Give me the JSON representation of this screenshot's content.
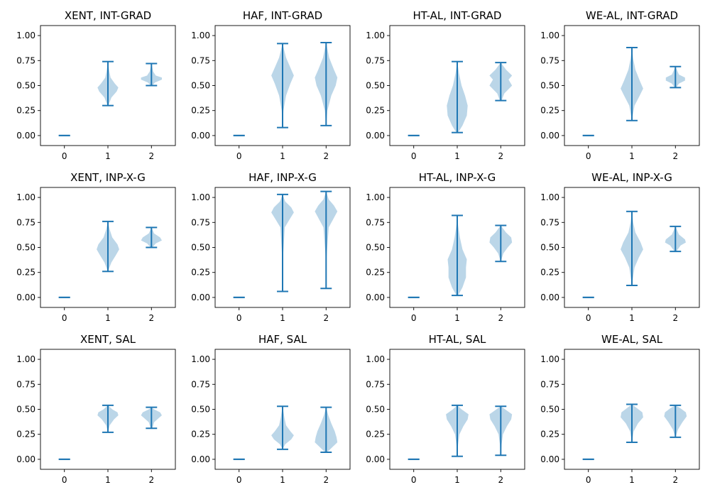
{
  "chart_data": {
    "type": "violin",
    "rows": 3,
    "cols": 4,
    "x_ticks": [
      0,
      1,
      2
    ],
    "y_ticks": [
      "0.00",
      "0.25",
      "0.50",
      "0.75",
      "1.00"
    ],
    "xlim": [
      -0.55,
      2.55
    ],
    "ylim": [
      -0.1,
      1.1
    ],
    "colors": {
      "body": "#1f77b4",
      "bar": "#1f77b4"
    },
    "panels": [
      {
        "title": "XENT, INT-GRAD",
        "series": [
          {
            "x": 0,
            "min": 0.0,
            "max": 0.0,
            "profile": []
          },
          {
            "x": 1,
            "min": 0.3,
            "max": 0.74,
            "profile": [
              [
                0.3,
                0.01
              ],
              [
                0.38,
                0.08
              ],
              [
                0.44,
                0.2
              ],
              [
                0.48,
                0.24
              ],
              [
                0.52,
                0.16
              ],
              [
                0.58,
                0.06
              ],
              [
                0.65,
                0.03
              ],
              [
                0.74,
                0.0
              ]
            ]
          },
          {
            "x": 2,
            "min": 0.5,
            "max": 0.72,
            "profile": [
              [
                0.5,
                0.02
              ],
              [
                0.53,
                0.08
              ],
              [
                0.56,
                0.24
              ],
              [
                0.58,
                0.24
              ],
              [
                0.6,
                0.1
              ],
              [
                0.64,
                0.04
              ],
              [
                0.72,
                0.0
              ]
            ]
          }
        ]
      },
      {
        "title": "HAF, INT-GRAD",
        "series": [
          {
            "x": 0,
            "min": 0.0,
            "max": 0.0,
            "profile": []
          },
          {
            "x": 1,
            "min": 0.08,
            "max": 0.92,
            "profile": [
              [
                0.08,
                0.0
              ],
              [
                0.25,
                0.02
              ],
              [
                0.4,
                0.08
              ],
              [
                0.52,
                0.18
              ],
              [
                0.6,
                0.26
              ],
              [
                0.68,
                0.18
              ],
              [
                0.78,
                0.08
              ],
              [
                0.92,
                0.0
              ]
            ]
          },
          {
            "x": 2,
            "min": 0.1,
            "max": 0.93,
            "profile": [
              [
                0.1,
                0.0
              ],
              [
                0.25,
                0.03
              ],
              [
                0.4,
                0.12
              ],
              [
                0.5,
                0.22
              ],
              [
                0.58,
                0.26
              ],
              [
                0.66,
                0.18
              ],
              [
                0.78,
                0.07
              ],
              [
                0.93,
                0.0
              ]
            ]
          }
        ]
      },
      {
        "title": "HT-AL, INT-GRAD",
        "series": [
          {
            "x": 0,
            "min": 0.0,
            "max": 0.0,
            "profile": []
          },
          {
            "x": 1,
            "min": 0.03,
            "max": 0.74,
            "profile": [
              [
                0.03,
                0.02
              ],
              [
                0.1,
                0.12
              ],
              [
                0.2,
                0.22
              ],
              [
                0.3,
                0.24
              ],
              [
                0.4,
                0.18
              ],
              [
                0.5,
                0.1
              ],
              [
                0.62,
                0.04
              ],
              [
                0.74,
                0.0
              ]
            ]
          },
          {
            "x": 2,
            "min": 0.35,
            "max": 0.73,
            "profile": [
              [
                0.35,
                0.02
              ],
              [
                0.42,
                0.08
              ],
              [
                0.5,
                0.26
              ],
              [
                0.56,
                0.18
              ],
              [
                0.6,
                0.28
              ],
              [
                0.66,
                0.12
              ],
              [
                0.73,
                0.0
              ]
            ]
          }
        ]
      },
      {
        "title": "WE-AL, INT-GRAD",
        "series": [
          {
            "x": 0,
            "min": 0.0,
            "max": 0.0,
            "profile": []
          },
          {
            "x": 1,
            "min": 0.15,
            "max": 0.88,
            "profile": [
              [
                0.15,
                0.0
              ],
              [
                0.3,
                0.06
              ],
              [
                0.4,
                0.18
              ],
              [
                0.47,
                0.26
              ],
              [
                0.55,
                0.18
              ],
              [
                0.66,
                0.08
              ],
              [
                0.77,
                0.03
              ],
              [
                0.88,
                0.0
              ]
            ]
          },
          {
            "x": 2,
            "min": 0.48,
            "max": 0.69,
            "profile": [
              [
                0.48,
                0.02
              ],
              [
                0.52,
                0.08
              ],
              [
                0.55,
                0.22
              ],
              [
                0.58,
                0.22
              ],
              [
                0.61,
                0.08
              ],
              [
                0.69,
                0.0
              ]
            ]
          }
        ]
      },
      {
        "title": "XENT, INP-X-G",
        "series": [
          {
            "x": 0,
            "min": 0.0,
            "max": 0.0,
            "profile": []
          },
          {
            "x": 1,
            "min": 0.26,
            "max": 0.76,
            "profile": [
              [
                0.26,
                0.0
              ],
              [
                0.35,
                0.08
              ],
              [
                0.42,
                0.18
              ],
              [
                0.48,
                0.26
              ],
              [
                0.53,
                0.22
              ],
              [
                0.6,
                0.1
              ],
              [
                0.68,
                0.04
              ],
              [
                0.76,
                0.0
              ]
            ]
          },
          {
            "x": 2,
            "min": 0.5,
            "max": 0.7,
            "profile": [
              [
                0.5,
                0.02
              ],
              [
                0.54,
                0.1
              ],
              [
                0.57,
                0.24
              ],
              [
                0.6,
                0.2
              ],
              [
                0.64,
                0.06
              ],
              [
                0.7,
                0.0
              ]
            ]
          }
        ]
      },
      {
        "title": "HAF, INP-X-G",
        "series": [
          {
            "x": 0,
            "min": 0.0,
            "max": 0.0,
            "profile": []
          },
          {
            "x": 1,
            "min": 0.06,
            "max": 1.03,
            "profile": [
              [
                0.06,
                0.0
              ],
              [
                0.4,
                0.01
              ],
              [
                0.7,
                0.05
              ],
              [
                0.78,
                0.16
              ],
              [
                0.85,
                0.26
              ],
              [
                0.9,
                0.2
              ],
              [
                0.96,
                0.06
              ],
              [
                1.03,
                0.0
              ]
            ]
          },
          {
            "x": 2,
            "min": 0.09,
            "max": 1.06,
            "profile": [
              [
                0.09,
                0.0
              ],
              [
                0.4,
                0.01
              ],
              [
                0.7,
                0.06
              ],
              [
                0.78,
                0.16
              ],
              [
                0.86,
                0.26
              ],
              [
                0.92,
                0.18
              ],
              [
                0.98,
                0.06
              ],
              [
                1.06,
                0.0
              ]
            ]
          }
        ]
      },
      {
        "title": "HT-AL, INP-X-G",
        "series": [
          {
            "x": 0,
            "min": 0.0,
            "max": 0.0,
            "profile": []
          },
          {
            "x": 1,
            "min": 0.02,
            "max": 0.82,
            "profile": [
              [
                0.02,
                0.02
              ],
              [
                0.1,
                0.12
              ],
              [
                0.2,
                0.2
              ],
              [
                0.3,
                0.2
              ],
              [
                0.38,
                0.22
              ],
              [
                0.48,
                0.12
              ],
              [
                0.6,
                0.06
              ],
              [
                0.72,
                0.02
              ],
              [
                0.82,
                0.0
              ]
            ]
          },
          {
            "x": 2,
            "min": 0.36,
            "max": 0.72,
            "profile": [
              [
                0.36,
                0.0
              ],
              [
                0.44,
                0.06
              ],
              [
                0.5,
                0.16
              ],
              [
                0.55,
                0.26
              ],
              [
                0.6,
                0.24
              ],
              [
                0.65,
                0.12
              ],
              [
                0.72,
                0.0
              ]
            ]
          }
        ]
      },
      {
        "title": "WE-AL, INP-X-G",
        "series": [
          {
            "x": 0,
            "min": 0.0,
            "max": 0.0,
            "profile": []
          },
          {
            "x": 1,
            "min": 0.12,
            "max": 0.86,
            "profile": [
              [
                0.12,
                0.0
              ],
              [
                0.3,
                0.06
              ],
              [
                0.4,
                0.16
              ],
              [
                0.48,
                0.26
              ],
              [
                0.55,
                0.2
              ],
              [
                0.65,
                0.08
              ],
              [
                0.75,
                0.03
              ],
              [
                0.86,
                0.0
              ]
            ]
          },
          {
            "x": 2,
            "min": 0.46,
            "max": 0.71,
            "profile": [
              [
                0.46,
                0.02
              ],
              [
                0.52,
                0.12
              ],
              [
                0.55,
                0.24
              ],
              [
                0.58,
                0.22
              ],
              [
                0.63,
                0.08
              ],
              [
                0.71,
                0.0
              ]
            ]
          }
        ]
      },
      {
        "title": "XENT, SAL",
        "series": [
          {
            "x": 0,
            "min": 0.0,
            "max": 0.0,
            "profile": []
          },
          {
            "x": 1,
            "min": 0.27,
            "max": 0.54,
            "profile": [
              [
                0.27,
                0.0
              ],
              [
                0.34,
                0.04
              ],
              [
                0.4,
                0.14
              ],
              [
                0.44,
                0.24
              ],
              [
                0.47,
                0.22
              ],
              [
                0.5,
                0.1
              ],
              [
                0.54,
                0.0
              ]
            ]
          },
          {
            "x": 2,
            "min": 0.31,
            "max": 0.52,
            "profile": [
              [
                0.31,
                0.02
              ],
              [
                0.37,
                0.06
              ],
              [
                0.41,
                0.16
              ],
              [
                0.44,
                0.24
              ],
              [
                0.47,
                0.2
              ],
              [
                0.5,
                0.06
              ],
              [
                0.52,
                0.0
              ]
            ]
          }
        ]
      },
      {
        "title": "HAF, SAL",
        "series": [
          {
            "x": 0,
            "min": 0.0,
            "max": 0.0,
            "profile": []
          },
          {
            "x": 1,
            "min": 0.1,
            "max": 0.53,
            "profile": [
              [
                0.1,
                0.0
              ],
              [
                0.15,
                0.06
              ],
              [
                0.2,
                0.2
              ],
              [
                0.24,
                0.26
              ],
              [
                0.28,
                0.18
              ],
              [
                0.34,
                0.08
              ],
              [
                0.42,
                0.04
              ],
              [
                0.53,
                0.0
              ]
            ]
          },
          {
            "x": 2,
            "min": 0.07,
            "max": 0.52,
            "profile": [
              [
                0.07,
                0.02
              ],
              [
                0.12,
                0.14
              ],
              [
                0.17,
                0.26
              ],
              [
                0.22,
                0.24
              ],
              [
                0.28,
                0.2
              ],
              [
                0.36,
                0.12
              ],
              [
                0.44,
                0.05
              ],
              [
                0.52,
                0.0
              ]
            ]
          }
        ]
      },
      {
        "title": "HT-AL, SAL",
        "series": [
          {
            "x": 0,
            "min": 0.0,
            "max": 0.0,
            "profile": []
          },
          {
            "x": 1,
            "min": 0.03,
            "max": 0.54,
            "profile": [
              [
                0.03,
                0.0
              ],
              [
                0.15,
                0.02
              ],
              [
                0.25,
                0.05
              ],
              [
                0.33,
                0.14
              ],
              [
                0.4,
                0.24
              ],
              [
                0.45,
                0.26
              ],
              [
                0.5,
                0.1
              ],
              [
                0.54,
                0.0
              ]
            ]
          },
          {
            "x": 2,
            "min": 0.04,
            "max": 0.53,
            "profile": [
              [
                0.04,
                0.0
              ],
              [
                0.15,
                0.02
              ],
              [
                0.25,
                0.05
              ],
              [
                0.33,
                0.14
              ],
              [
                0.4,
                0.24
              ],
              [
                0.45,
                0.26
              ],
              [
                0.5,
                0.1
              ],
              [
                0.53,
                0.0
              ]
            ]
          }
        ]
      },
      {
        "title": "WE-AL, SAL",
        "series": [
          {
            "x": 0,
            "min": 0.0,
            "max": 0.0,
            "profile": []
          },
          {
            "x": 1,
            "min": 0.17,
            "max": 0.55,
            "profile": [
              [
                0.17,
                0.0
              ],
              [
                0.28,
                0.04
              ],
              [
                0.36,
                0.14
              ],
              [
                0.42,
                0.26
              ],
              [
                0.47,
                0.24
              ],
              [
                0.51,
                0.12
              ],
              [
                0.55,
                0.0
              ]
            ]
          },
          {
            "x": 2,
            "min": 0.22,
            "max": 0.54,
            "profile": [
              [
                0.22,
                0.0
              ],
              [
                0.3,
                0.06
              ],
              [
                0.37,
                0.16
              ],
              [
                0.43,
                0.26
              ],
              [
                0.47,
                0.24
              ],
              [
                0.51,
                0.12
              ],
              [
                0.54,
                0.0
              ]
            ]
          }
        ]
      }
    ]
  }
}
